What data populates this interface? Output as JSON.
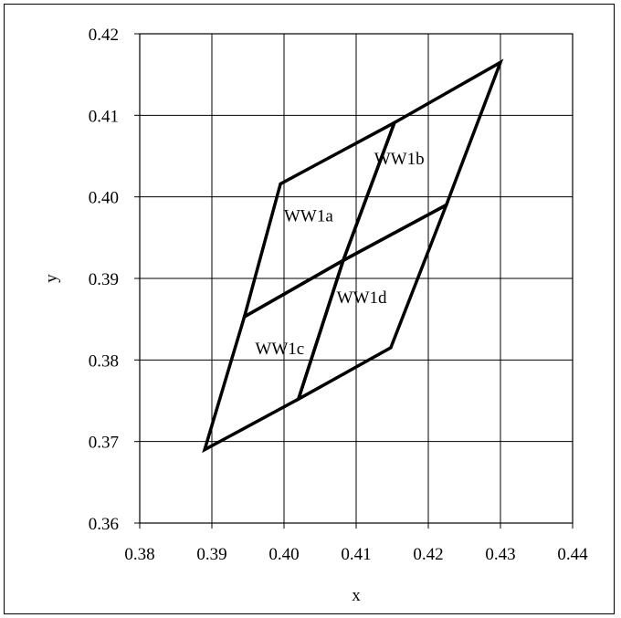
{
  "chart_data": {
    "type": "line",
    "title": "",
    "xlabel": "x",
    "ylabel": "y",
    "xlim": [
      0.38,
      0.44
    ],
    "ylim": [
      0.36,
      0.42
    ],
    "x_ticks": [
      "0.38",
      "0.39",
      "0.40",
      "0.41",
      "0.42",
      "0.43",
      "0.44"
    ],
    "y_ticks": [
      "0.36",
      "0.37",
      "0.38",
      "0.39",
      "0.40",
      "0.41",
      "0.42"
    ],
    "grid": true,
    "legend": "none",
    "line_color": "#000000",
    "grid_color": "#000000",
    "quadrilaterals": [
      {
        "name": "WW1a",
        "points": [
          [
            0.3945,
            0.3853
          ],
          [
            0.4082,
            0.3922
          ],
          [
            0.4153,
            0.4091
          ],
          [
            0.3995,
            0.4016
          ]
        ]
      },
      {
        "name": "WW1b",
        "points": [
          [
            0.4082,
            0.3922
          ],
          [
            0.4225,
            0.399
          ],
          [
            0.43,
            0.4165
          ],
          [
            0.4153,
            0.4091
          ]
        ]
      },
      {
        "name": "WW1c",
        "points": [
          [
            0.389,
            0.369
          ],
          [
            0.402,
            0.3752
          ],
          [
            0.4082,
            0.3922
          ],
          [
            0.3945,
            0.3853
          ]
        ]
      },
      {
        "name": "WW1d",
        "points": [
          [
            0.402,
            0.3752
          ],
          [
            0.4148,
            0.3815
          ],
          [
            0.4225,
            0.399
          ],
          [
            0.4082,
            0.3922
          ]
        ]
      }
    ],
    "annotations": [
      {
        "text": "WW1a",
        "x": 0.4,
        "y": 0.397
      },
      {
        "text": "WW1b",
        "x": 0.4125,
        "y": 0.404
      },
      {
        "text": "WW1c",
        "x": 0.396,
        "y": 0.3807
      },
      {
        "text": "WW1d",
        "x": 0.4073,
        "y": 0.387
      }
    ]
  }
}
